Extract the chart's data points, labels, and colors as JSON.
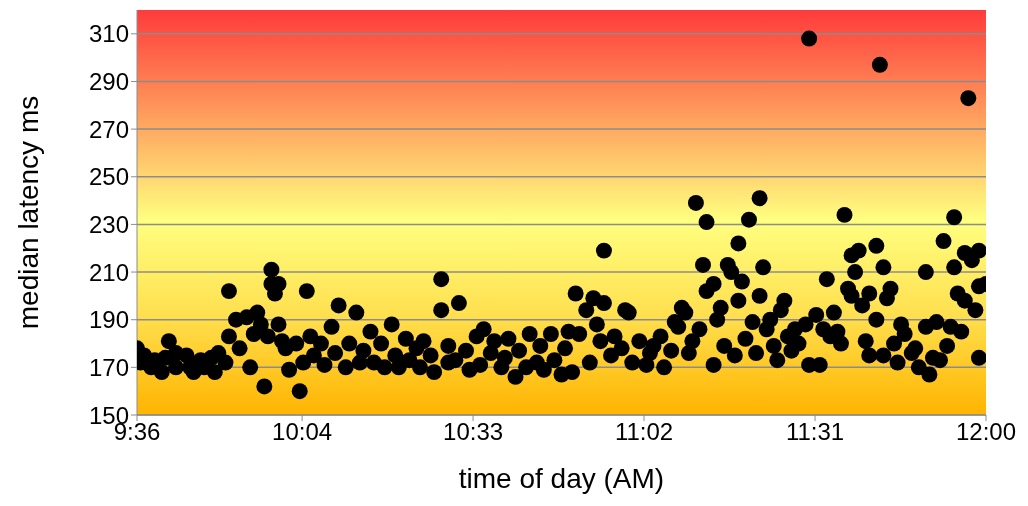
{
  "chart_data": {
    "type": "scatter",
    "xlabel": "time of day (AM)",
    "ylabel": "median latency  ms",
    "xlim": [
      9.6,
      12.0
    ],
    "ylim": [
      150,
      320
    ],
    "xticks": [
      {
        "value": 9.6,
        "label": "9:36"
      },
      {
        "value": 10.0667,
        "label": "10:04"
      },
      {
        "value": 10.55,
        "label": "10:33"
      },
      {
        "value": 11.0333,
        "label": "11:02"
      },
      {
        "value": 11.5167,
        "label": "11:31"
      },
      {
        "value": 12.0,
        "label": "12:00"
      }
    ],
    "yticks": [
      150,
      170,
      190,
      210,
      230,
      250,
      270,
      290,
      310
    ],
    "grid": "y",
    "marker": "circle",
    "series": [
      {
        "color": "#000000",
        "x": [
          9.6,
          9.61,
          9.62,
          9.64,
          9.65,
          9.67,
          9.68,
          9.69,
          9.71,
          9.71,
          9.74,
          9.75,
          9.76,
          9.78,
          9.79,
          9.81,
          9.82,
          9.83,
          9.85,
          9.86,
          9.86,
          9.88,
          9.89,
          9.91,
          9.92,
          9.93,
          9.94,
          9.95,
          9.96,
          9.97,
          9.98,
          9.98,
          9.99,
          10.0,
          10.0,
          10.01,
          10.02,
          10.03,
          10.05,
          10.06,
          10.07,
          10.08,
          10.09,
          10.1,
          10.12,
          10.13,
          10.15,
          10.16,
          10.17,
          10.19,
          10.2,
          10.22,
          10.23,
          10.24,
          10.26,
          10.27,
          10.29,
          10.3,
          10.32,
          10.33,
          10.34,
          10.36,
          10.37,
          10.39,
          10.4,
          10.41,
          10.43,
          10.44,
          10.46,
          10.46,
          10.48,
          10.48,
          10.5,
          10.51,
          10.53,
          10.54,
          10.56,
          10.57,
          10.58,
          10.6,
          10.61,
          10.63,
          10.64,
          10.65,
          10.67,
          10.68,
          10.7,
          10.71,
          10.73,
          10.74,
          10.75,
          10.77,
          10.78,
          10.8,
          10.81,
          10.82,
          10.83,
          10.84,
          10.85,
          10.87,
          10.88,
          10.89,
          10.9,
          10.91,
          10.92,
          10.92,
          10.94,
          10.95,
          10.97,
          10.98,
          10.99,
          11.0,
          11.02,
          11.04,
          11.05,
          11.06,
          11.08,
          11.09,
          11.11,
          11.12,
          11.13,
          11.14,
          11.15,
          11.16,
          11.17,
          11.18,
          11.19,
          11.2,
          11.21,
          11.21,
          11.23,
          11.23,
          11.24,
          11.25,
          11.26,
          11.27,
          11.28,
          11.29,
          11.3,
          11.3,
          11.31,
          11.32,
          11.33,
          11.34,
          11.35,
          11.36,
          11.36,
          11.37,
          11.38,
          11.39,
          11.4,
          11.41,
          11.42,
          11.43,
          11.44,
          11.45,
          11.46,
          11.47,
          11.49,
          11.5,
          11.5,
          11.52,
          11.53,
          11.54,
          11.55,
          11.56,
          11.57,
          11.58,
          11.59,
          11.6,
          11.61,
          11.62,
          11.62,
          11.63,
          11.64,
          11.65,
          11.66,
          11.67,
          11.67,
          11.69,
          11.69,
          11.7,
          11.71,
          11.71,
          11.72,
          11.73,
          11.74,
          11.75,
          11.76,
          11.77,
          11.79,
          11.8,
          11.81,
          11.83,
          11.83,
          11.84,
          11.85,
          11.86,
          11.87,
          11.88,
          11.89,
          11.9,
          11.91,
          11.91,
          11.92,
          11.93,
          11.94,
          11.94,
          11.95,
          11.96,
          11.97,
          11.98,
          11.98,
          11.98,
          12.0
        ],
        "values": [
          178,
          172,
          175,
          170,
          173,
          168,
          174,
          181,
          176,
          170,
          175,
          170,
          168,
          173,
          170,
          174,
          168,
          176,
          172,
          202,
          183,
          190,
          178,
          191,
          170,
          184,
          193,
          188,
          162,
          183,
          205,
          211,
          201,
          205,
          188,
          181,
          178,
          169,
          180,
          160,
          172,
          202,
          183,
          175,
          180,
          171,
          187,
          176,
          196,
          170,
          180,
          193,
          172,
          177,
          185,
          172,
          180,
          170,
          188,
          175,
          170,
          182,
          173,
          178,
          170,
          181,
          175,
          168,
          194,
          207,
          172,
          179,
          173,
          197,
          177,
          169,
          183,
          171,
          186,
          176,
          181,
          170,
          174,
          182,
          166,
          177,
          170,
          184,
          172,
          179,
          169,
          184,
          173,
          167,
          178,
          185,
          168,
          201,
          184,
          194,
          172,
          199,
          188,
          181,
          219,
          197,
          175,
          183,
          178,
          194,
          193,
          172,
          181,
          171,
          176,
          179,
          183,
          170,
          177,
          189,
          187,
          195,
          193,
          176,
          181,
          239,
          186,
          213,
          202,
          231,
          205,
          171,
          190,
          195,
          179,
          213,
          210,
          175,
          198,
          222,
          206,
          182,
          232,
          189,
          176,
          241,
          200,
          212,
          186,
          190,
          179,
          173,
          194,
          198,
          183,
          177,
          186,
          180,
          188,
          308,
          171,
          192,
          171,
          186,
          207,
          183,
          193,
          185,
          180,
          234,
          203,
          217,
          200,
          210,
          219,
          196,
          181,
          175,
          201,
          190,
          221,
          297,
          212,
          175,
          199,
          203,
          180,
          172,
          188,
          184,
          176,
          178,
          170,
          210,
          187,
          167,
          174,
          189,
          173,
          223,
          179,
          187,
          212,
          233,
          201,
          185,
          218,
          198,
          283,
          215,
          194,
          219,
          204,
          174,
          205
        ]
      }
    ]
  }
}
